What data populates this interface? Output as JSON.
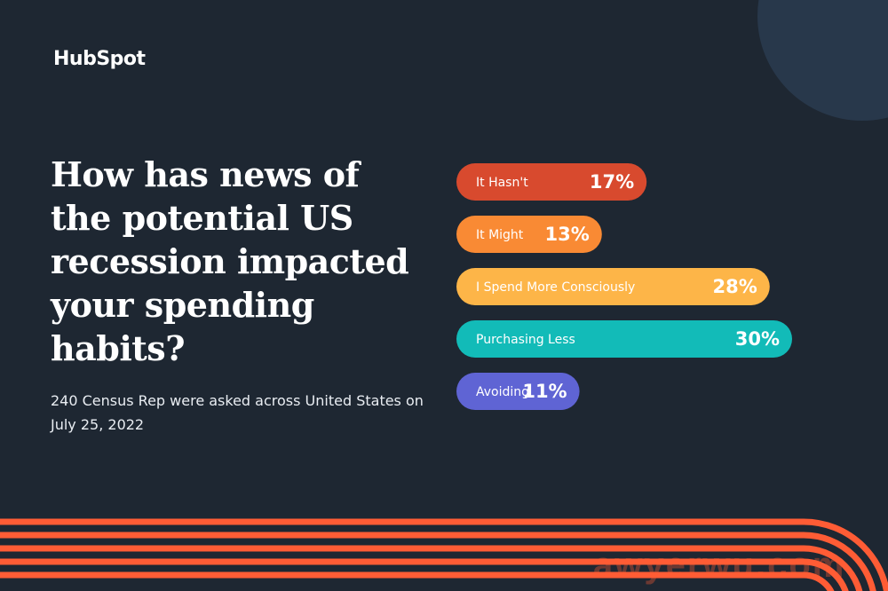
{
  "brand": {
    "logo_text": "HubSpot"
  },
  "headline": "How has news of the potential US recession impacted your spending habits?",
  "subtitle": "240 Census Rep were asked across United States on July 25, 2022",
  "watermark": "awyerwu.com",
  "colors": {
    "background": "#1e2732",
    "accent_stripes": "#ff5c35"
  },
  "chart_data": {
    "type": "bar",
    "orientation": "horizontal",
    "categories": [
      "It Hasn't",
      "It Might",
      "I Spend More Consciously",
      "Purchasing Less",
      "Avoiding"
    ],
    "values": [
      17,
      13,
      28,
      30,
      11
    ],
    "value_labels": [
      "17%",
      "13%",
      "28%",
      "30%",
      "11%"
    ],
    "unit": "%",
    "bar_colors": [
      "#d84a2e",
      "#f98a34",
      "#fdb548",
      "#12bbb8",
      "#5f64d4"
    ],
    "title": "",
    "xlabel": "",
    "ylabel": "",
    "grid": false
  }
}
